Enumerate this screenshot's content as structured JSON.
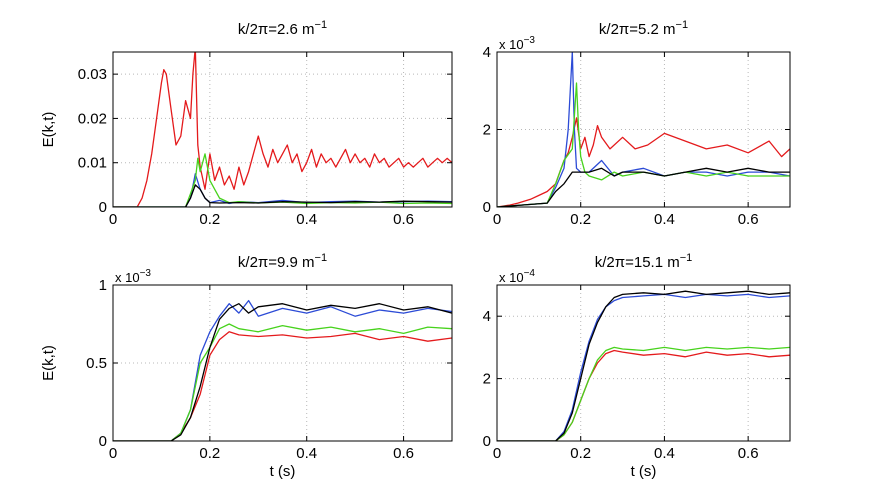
{
  "colors": {
    "red": "#e41a1c",
    "blue": "#2c4bd6",
    "green": "#47d21c",
    "black": "#000000"
  },
  "chart_data": [
    {
      "type": "line",
      "title": "k/2π=2.6 m",
      "title_sup": "−1",
      "xlabel": "",
      "ylabel": "E(k,t)",
      "xlim": [
        0,
        0.7
      ],
      "ylim": [
        0,
        0.035
      ],
      "xticks": [
        0,
        0.2,
        0.4,
        0.6
      ],
      "xtick_labels": [
        "0",
        "0.2",
        "0.4",
        "0.6"
      ],
      "yticks": [
        0,
        0.01,
        0.02,
        0.03
      ],
      "ytick_labels": [
        "0",
        "0.01",
        "0.02",
        "0.03"
      ],
      "exponent": "",
      "series": [
        {
          "name": "red",
          "color": "#e41a1c",
          "x": [
            0,
            0.05,
            0.06,
            0.07,
            0.08,
            0.09,
            0.1,
            0.105,
            0.11,
            0.12,
            0.13,
            0.14,
            0.15,
            0.16,
            0.165,
            0.17,
            0.175,
            0.18,
            0.19,
            0.2,
            0.21,
            0.22,
            0.23,
            0.24,
            0.25,
            0.26,
            0.27,
            0.28,
            0.29,
            0.3,
            0.31,
            0.32,
            0.33,
            0.34,
            0.35,
            0.36,
            0.37,
            0.38,
            0.39,
            0.4,
            0.41,
            0.42,
            0.43,
            0.44,
            0.45,
            0.46,
            0.47,
            0.48,
            0.49,
            0.5,
            0.51,
            0.52,
            0.53,
            0.54,
            0.55,
            0.56,
            0.57,
            0.58,
            0.59,
            0.6,
            0.61,
            0.62,
            0.63,
            0.64,
            0.65,
            0.66,
            0.67,
            0.68,
            0.69,
            0.7
          ],
          "y": [
            0,
            0,
            0.002,
            0.006,
            0.012,
            0.02,
            0.028,
            0.031,
            0.03,
            0.022,
            0.014,
            0.016,
            0.024,
            0.02,
            0.03,
            0.036,
            0.014,
            0.009,
            0.004,
            0.012,
            0.006,
            0.009,
            0.005,
            0.007,
            0.004,
            0.009,
            0.005,
            0.008,
            0.012,
            0.016,
            0.012,
            0.009,
            0.013,
            0.01,
            0.012,
            0.014,
            0.01,
            0.012,
            0.008,
            0.01,
            0.013,
            0.009,
            0.012,
            0.01,
            0.011,
            0.009,
            0.011,
            0.013,
            0.01,
            0.012,
            0.01,
            0.011,
            0.009,
            0.012,
            0.01,
            0.011,
            0.009,
            0.01,
            0.011,
            0.009,
            0.01,
            0.009,
            0.01,
            0.011,
            0.009,
            0.01,
            0.011,
            0.01,
            0.011,
            0.01
          ]
        },
        {
          "name": "blue",
          "color": "#2c4bd6",
          "x": [
            0,
            0.15,
            0.16,
            0.17,
            0.18,
            0.19,
            0.2,
            0.22,
            0.24,
            0.26,
            0.3,
            0.35,
            0.4,
            0.45,
            0.5,
            0.55,
            0.6,
            0.65,
            0.7
          ],
          "y": [
            0,
            0,
            0.002,
            0.0075,
            0.004,
            0.002,
            0.001,
            0.0015,
            0.0008,
            0.0012,
            0.001,
            0.0015,
            0.001,
            0.0012,
            0.0013,
            0.0011,
            0.0012,
            0.0013,
            0.0012
          ]
        },
        {
          "name": "green",
          "color": "#47d21c",
          "x": [
            0,
            0.15,
            0.16,
            0.17,
            0.175,
            0.18,
            0.19,
            0.2,
            0.21,
            0.22,
            0.24,
            0.26,
            0.3,
            0.35,
            0.4,
            0.45,
            0.5,
            0.55,
            0.6,
            0.65,
            0.7
          ],
          "y": [
            0,
            0,
            0.003,
            0.006,
            0.011,
            0.008,
            0.012,
            0.006,
            0.004,
            0.002,
            0.001,
            0.0012,
            0.0009,
            0.0011,
            0.0008,
            0.001,
            0.0009,
            0.0011,
            0.0008,
            0.0009,
            0.0008
          ]
        },
        {
          "name": "black",
          "color": "#000000",
          "x": [
            0,
            0.15,
            0.16,
            0.17,
            0.18,
            0.19,
            0.2,
            0.22,
            0.26,
            0.3,
            0.35,
            0.4,
            0.45,
            0.5,
            0.55,
            0.6,
            0.65,
            0.7
          ],
          "y": [
            0,
            0,
            0.002,
            0.005,
            0.004,
            0.002,
            0.001,
            0.0009,
            0.001,
            0.0009,
            0.0012,
            0.0011,
            0.001,
            0.0012,
            0.0011,
            0.0013,
            0.0012,
            0.0011
          ]
        }
      ]
    },
    {
      "type": "line",
      "title": "k/2π=5.2 m",
      "title_sup": "−1",
      "xlabel": "",
      "ylabel": "",
      "xlim": [
        0,
        0.7
      ],
      "ylim": [
        0,
        4
      ],
      "xticks": [
        0,
        0.2,
        0.4,
        0.6
      ],
      "xtick_labels": [
        "0",
        "0.2",
        "0.4",
        "0.6"
      ],
      "yticks": [
        0,
        2,
        4
      ],
      "ytick_labels": [
        "0",
        "2",
        "4"
      ],
      "exponent": "x 10",
      "exponent_sup": "−3",
      "series": [
        {
          "name": "red",
          "color": "#e41a1c",
          "x": [
            0,
            0.03,
            0.05,
            0.08,
            0.1,
            0.12,
            0.14,
            0.15,
            0.16,
            0.17,
            0.18,
            0.19,
            0.2,
            0.21,
            0.22,
            0.23,
            0.24,
            0.25,
            0.27,
            0.3,
            0.33,
            0.36,
            0.4,
            0.45,
            0.5,
            0.55,
            0.6,
            0.65,
            0.68,
            0.7
          ],
          "y": [
            0,
            0.05,
            0.1,
            0.2,
            0.3,
            0.4,
            0.6,
            0.9,
            1.2,
            1.4,
            1.8,
            2.3,
            1.5,
            1.8,
            1.3,
            1.6,
            2.1,
            1.8,
            1.5,
            1.8,
            1.5,
            1.6,
            1.9,
            1.7,
            1.5,
            1.6,
            1.4,
            1.7,
            1.3,
            1.5
          ]
        },
        {
          "name": "blue",
          "color": "#2c4bd6",
          "x": [
            0,
            0.12,
            0.14,
            0.16,
            0.17,
            0.18,
            0.185,
            0.19,
            0.2,
            0.22,
            0.25,
            0.28,
            0.3,
            0.35,
            0.4,
            0.45,
            0.5,
            0.55,
            0.6,
            0.65,
            0.7
          ],
          "y": [
            0,
            0.1,
            0.5,
            1.0,
            2.0,
            4.0,
            2.0,
            1.0,
            0.9,
            0.9,
            1.2,
            0.8,
            0.9,
            1.0,
            0.8,
            0.9,
            0.9,
            0.8,
            0.9,
            0.9,
            0.8
          ]
        },
        {
          "name": "green",
          "color": "#47d21c",
          "x": [
            0,
            0.12,
            0.14,
            0.16,
            0.18,
            0.19,
            0.195,
            0.2,
            0.21,
            0.22,
            0.25,
            0.28,
            0.3,
            0.35,
            0.4,
            0.45,
            0.5,
            0.55,
            0.6,
            0.65,
            0.7
          ],
          "y": [
            0,
            0.1,
            0.6,
            1.2,
            1.5,
            3.2,
            2.0,
            1.3,
            0.9,
            0.8,
            0.7,
            0.9,
            0.8,
            0.9,
            0.8,
            0.9,
            0.8,
            0.9,
            0.8,
            0.8,
            0.8
          ]
        },
        {
          "name": "black",
          "color": "#000000",
          "x": [
            0,
            0.12,
            0.14,
            0.16,
            0.18,
            0.2,
            0.22,
            0.25,
            0.28,
            0.3,
            0.35,
            0.4,
            0.45,
            0.5,
            0.55,
            0.6,
            0.65,
            0.7
          ],
          "y": [
            0,
            0.1,
            0.4,
            0.6,
            0.9,
            0.9,
            0.9,
            1.0,
            0.8,
            0.9,
            0.9,
            0.8,
            0.9,
            1.0,
            0.9,
            1.0,
            0.9,
            0.9
          ]
        }
      ]
    },
    {
      "type": "line",
      "title": "k/2π=9.9 m",
      "title_sup": "−1",
      "xlabel": "t (s)",
      "ylabel": "E(k,t)",
      "xlim": [
        0,
        0.7
      ],
      "ylim": [
        0,
        1
      ],
      "xticks": [
        0,
        0.2,
        0.4,
        0.6
      ],
      "xtick_labels": [
        "0",
        "0.2",
        "0.4",
        "0.6"
      ],
      "yticks": [
        0,
        0.5,
        1
      ],
      "ytick_labels": [
        "0",
        "0.5",
        "1"
      ],
      "exponent": "x 10",
      "exponent_sup": "−3",
      "series": [
        {
          "name": "red",
          "color": "#e41a1c",
          "x": [
            0,
            0.12,
            0.14,
            0.16,
            0.18,
            0.2,
            0.22,
            0.24,
            0.26,
            0.3,
            0.35,
            0.4,
            0.45,
            0.5,
            0.55,
            0.6,
            0.65,
            0.7
          ],
          "y": [
            0,
            0,
            0.05,
            0.15,
            0.3,
            0.55,
            0.65,
            0.7,
            0.68,
            0.67,
            0.68,
            0.66,
            0.67,
            0.69,
            0.65,
            0.67,
            0.64,
            0.66
          ]
        },
        {
          "name": "blue",
          "color": "#2c4bd6",
          "x": [
            0,
            0.12,
            0.14,
            0.16,
            0.18,
            0.2,
            0.22,
            0.24,
            0.26,
            0.28,
            0.3,
            0.35,
            0.4,
            0.45,
            0.5,
            0.55,
            0.6,
            0.65,
            0.7
          ],
          "y": [
            0,
            0,
            0.05,
            0.2,
            0.55,
            0.7,
            0.8,
            0.88,
            0.82,
            0.9,
            0.8,
            0.85,
            0.82,
            0.86,
            0.8,
            0.84,
            0.82,
            0.85,
            0.83
          ]
        },
        {
          "name": "green",
          "color": "#47d21c",
          "x": [
            0,
            0.12,
            0.14,
            0.16,
            0.18,
            0.2,
            0.22,
            0.24,
            0.26,
            0.3,
            0.35,
            0.4,
            0.45,
            0.5,
            0.55,
            0.6,
            0.65,
            0.7
          ],
          "y": [
            0,
            0,
            0.05,
            0.2,
            0.5,
            0.6,
            0.72,
            0.75,
            0.72,
            0.7,
            0.74,
            0.71,
            0.73,
            0.7,
            0.72,
            0.69,
            0.73,
            0.72
          ]
        },
        {
          "name": "black",
          "color": "#000000",
          "x": [
            0,
            0.12,
            0.14,
            0.16,
            0.18,
            0.2,
            0.22,
            0.24,
            0.26,
            0.28,
            0.3,
            0.35,
            0.4,
            0.45,
            0.5,
            0.55,
            0.6,
            0.65,
            0.7
          ],
          "y": [
            0,
            0,
            0.04,
            0.15,
            0.35,
            0.6,
            0.78,
            0.85,
            0.88,
            0.82,
            0.86,
            0.88,
            0.84,
            0.87,
            0.85,
            0.88,
            0.84,
            0.86,
            0.82
          ]
        }
      ]
    },
    {
      "type": "line",
      "title": "k/2π=15.1 m",
      "title_sup": "−1",
      "xlabel": "t (s)",
      "ylabel": "",
      "xlim": [
        0,
        0.7
      ],
      "ylim": [
        0,
        5
      ],
      "xticks": [
        0,
        0.2,
        0.4,
        0.6
      ],
      "xtick_labels": [
        "0",
        "0.2",
        "0.4",
        "0.6"
      ],
      "yticks": [
        0,
        2,
        4
      ],
      "ytick_labels": [
        "0",
        "2",
        "4"
      ],
      "exponent": "x 10",
      "exponent_sup": "−4",
      "series": [
        {
          "name": "red",
          "color": "#e41a1c",
          "x": [
            0,
            0.14,
            0.16,
            0.18,
            0.2,
            0.22,
            0.24,
            0.26,
            0.28,
            0.3,
            0.35,
            0.4,
            0.45,
            0.5,
            0.55,
            0.6,
            0.65,
            0.7
          ],
          "y": [
            0,
            0,
            0.2,
            0.6,
            1.3,
            2.0,
            2.5,
            2.8,
            2.9,
            2.85,
            2.75,
            2.8,
            2.7,
            2.85,
            2.75,
            2.8,
            2.7,
            2.75
          ]
        },
        {
          "name": "blue",
          "color": "#2c4bd6",
          "x": [
            0,
            0.14,
            0.16,
            0.18,
            0.2,
            0.22,
            0.24,
            0.26,
            0.28,
            0.3,
            0.35,
            0.4,
            0.45,
            0.5,
            0.55,
            0.6,
            0.65,
            0.7
          ],
          "y": [
            0,
            0,
            0.3,
            1.0,
            2.2,
            3.2,
            3.9,
            4.3,
            4.5,
            4.6,
            4.65,
            4.7,
            4.6,
            4.7,
            4.65,
            4.7,
            4.6,
            4.65
          ]
        },
        {
          "name": "green",
          "color": "#47d21c",
          "x": [
            0,
            0.14,
            0.16,
            0.18,
            0.2,
            0.22,
            0.24,
            0.26,
            0.28,
            0.3,
            0.35,
            0.4,
            0.45,
            0.5,
            0.55,
            0.6,
            0.65,
            0.7
          ],
          "y": [
            0,
            0,
            0.2,
            0.6,
            1.3,
            2.0,
            2.6,
            2.9,
            3.0,
            2.95,
            2.9,
            3.0,
            2.9,
            3.0,
            2.95,
            3.0,
            2.95,
            3.0
          ]
        },
        {
          "name": "black",
          "color": "#000000",
          "x": [
            0,
            0.14,
            0.16,
            0.18,
            0.2,
            0.22,
            0.24,
            0.26,
            0.28,
            0.3,
            0.35,
            0.4,
            0.45,
            0.5,
            0.55,
            0.6,
            0.65,
            0.7
          ],
          "y": [
            0,
            0,
            0.25,
            0.9,
            2.0,
            3.1,
            3.8,
            4.3,
            4.6,
            4.7,
            4.75,
            4.7,
            4.8,
            4.7,
            4.75,
            4.8,
            4.7,
            4.75
          ]
        }
      ]
    }
  ]
}
